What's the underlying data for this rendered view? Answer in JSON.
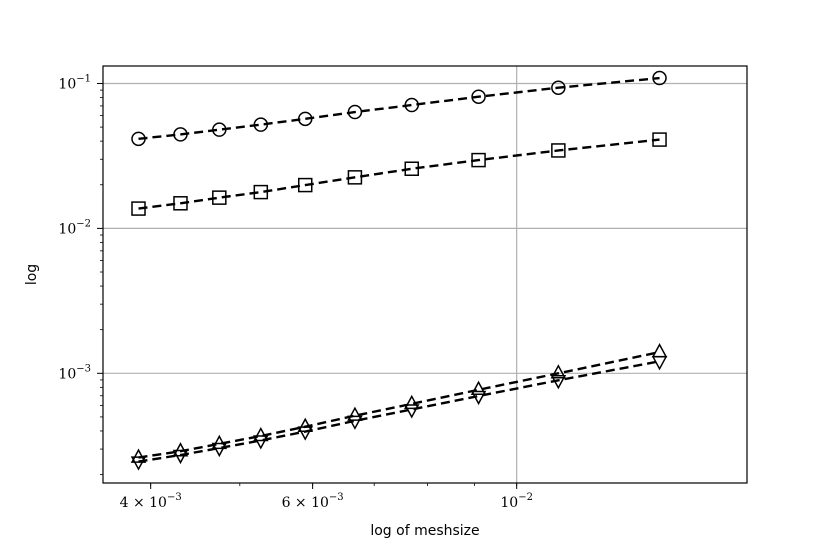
{
  "chart_data": {
    "type": "line",
    "xscale": "log",
    "yscale": "log",
    "xlabel": "log of meshsize",
    "ylabel": "log",
    "xlim": [
      0.00355,
      0.0178
    ],
    "ylim": [
      0.000175,
      0.132
    ],
    "grid": true,
    "line_style": "dashed",
    "line_color": "#000000",
    "x_ticks": [
      {
        "value": 0.004,
        "mant": "4",
        "exp": "−3"
      },
      {
        "value": 0.006,
        "mant": "6",
        "exp": "−3"
      },
      {
        "value": 0.01,
        "mant": "",
        "exp": "−2"
      }
    ],
    "y_ticks": [
      {
        "value": 0.1,
        "exp": "−1"
      },
      {
        "value": 0.01,
        "exp": "−2"
      },
      {
        "value": 0.001,
        "exp": "−3"
      }
    ],
    "x_gridlines": [
      0.01
    ],
    "y_gridlines": [
      0.1,
      0.01,
      0.001
    ],
    "x": [
      0.00388,
      0.00431,
      0.00475,
      0.00527,
      0.00589,
      0.00667,
      0.00769,
      0.00909,
      0.0111,
      0.0143
    ],
    "series": [
      {
        "marker": "circle",
        "values": [
          0.0415,
          0.0445,
          0.048,
          0.052,
          0.057,
          0.0635,
          0.071,
          0.081,
          0.0935,
          0.109
        ]
      },
      {
        "marker": "square",
        "values": [
          0.0137,
          0.0149,
          0.0163,
          0.0178,
          0.0199,
          0.0225,
          0.0258,
          0.0296,
          0.0345,
          0.041
        ]
      },
      {
        "marker": "triangle-up",
        "values": [
          0.000262,
          0.00029,
          0.000326,
          0.000369,
          0.000428,
          0.00051,
          0.000615,
          0.00077,
          0.001,
          0.0014
        ]
      },
      {
        "marker": "triangle-down",
        "values": [
          0.000246,
          0.000273,
          0.000305,
          0.000344,
          0.000396,
          0.00047,
          0.000563,
          0.000697,
          0.000895,
          0.00121
        ]
      }
    ]
  }
}
